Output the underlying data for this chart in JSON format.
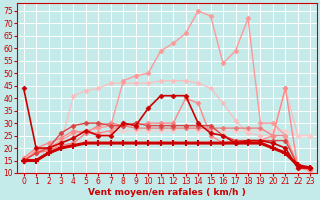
{
  "xlabel": "Vent moyen/en rafales ( km/h )",
  "xlim": [
    -0.5,
    23.5
  ],
  "ylim": [
    10,
    78
  ],
  "yticks": [
    10,
    15,
    20,
    25,
    30,
    35,
    40,
    45,
    50,
    55,
    60,
    65,
    70,
    75
  ],
  "xticks": [
    0,
    1,
    2,
    3,
    4,
    5,
    6,
    7,
    8,
    9,
    10,
    11,
    12,
    13,
    14,
    15,
    16,
    17,
    18,
    19,
    20,
    21,
    22,
    23
  ],
  "bg_color": "#c5eaea",
  "grid_color": "#ffffff",
  "series": [
    {
      "x": [
        0,
        1,
        2,
        3,
        4,
        5,
        6,
        7,
        8,
        9,
        10,
        11,
        12,
        13,
        14,
        15,
        16,
        17,
        18,
        19,
        20,
        21,
        22,
        23
      ],
      "y": [
        15,
        15,
        18,
        20,
        21,
        22,
        22,
        22,
        22,
        22,
        22,
        22,
        22,
        22,
        22,
        22,
        22,
        22,
        22,
        22,
        20,
        18,
        13,
        12
      ],
      "color": "#cc0000",
      "linewidth": 2.2,
      "marker": "+",
      "markersize": 4,
      "markeredgewidth": 1.5,
      "alpha": 1.0,
      "zorder": 5
    },
    {
      "x": [
        0,
        1,
        2,
        3,
        4,
        5,
        6,
        7,
        8,
        9,
        10,
        11,
        12,
        13,
        14,
        15,
        16,
        17,
        18,
        19,
        20,
        21,
        22,
        23
      ],
      "y": [
        44,
        20,
        20,
        22,
        24,
        27,
        25,
        25,
        30,
        29,
        36,
        41,
        41,
        41,
        30,
        26,
        25,
        22,
        23,
        23,
        22,
        20,
        12,
        12
      ],
      "color": "#cc0000",
      "linewidth": 1.2,
      "marker": "D",
      "markersize": 2.5,
      "markeredgewidth": 0.5,
      "alpha": 1.0,
      "zorder": 4
    },
    {
      "x": [
        0,
        1,
        2,
        3,
        4,
        5,
        6,
        7,
        8,
        9,
        10,
        11,
        12,
        13,
        14,
        15,
        16,
        17,
        18,
        19,
        20,
        21,
        22,
        23
      ],
      "y": [
        15,
        19,
        20,
        23,
        26,
        27,
        28,
        29,
        47,
        49,
        50,
        59,
        62,
        66,
        75,
        73,
        54,
        59,
        72,
        30,
        30,
        25,
        13,
        11
      ],
      "color": "#ff9999",
      "linewidth": 1.0,
      "marker": "D",
      "markersize": 2.5,
      "markeredgewidth": 0.5,
      "alpha": 1.0,
      "zorder": 3
    },
    {
      "x": [
        0,
        1,
        2,
        3,
        4,
        5,
        6,
        7,
        8,
        9,
        10,
        11,
        12,
        13,
        14,
        15,
        16,
        17,
        18,
        19,
        20,
        21,
        22,
        23
      ],
      "y": [
        16,
        20,
        22,
        24,
        27,
        26,
        26,
        27,
        30,
        29,
        30,
        30,
        30,
        40,
        38,
        25,
        22,
        23,
        23,
        23,
        25,
        44,
        12,
        11
      ],
      "color": "#ff8888",
      "linewidth": 1.0,
      "marker": "D",
      "markersize": 2.5,
      "markeredgewidth": 0.5,
      "alpha": 1.0,
      "zorder": 3
    },
    {
      "x": [
        0,
        1,
        2,
        3,
        4,
        5,
        6,
        7,
        8,
        9,
        10,
        11,
        12,
        13,
        14,
        15,
        16,
        17,
        18,
        19,
        20,
        21,
        22,
        23
      ],
      "y": [
        15,
        18,
        19,
        22,
        41,
        43,
        44,
        46,
        46,
        46,
        46,
        47,
        47,
        47,
        46,
        44,
        38,
        31,
        26,
        25,
        25,
        44,
        25,
        25
      ],
      "color": "#ffbbbb",
      "linewidth": 1.0,
      "marker": "D",
      "markersize": 2.5,
      "markeredgewidth": 0.5,
      "alpha": 0.85,
      "zorder": 2
    },
    {
      "x": [
        0,
        1,
        2,
        3,
        4,
        5,
        6,
        7,
        8,
        9,
        10,
        11,
        12,
        13,
        14,
        15,
        16,
        17,
        18,
        19,
        20,
        21,
        22,
        23
      ],
      "y": [
        15,
        19,
        20,
        21,
        22,
        23,
        25,
        26,
        27,
        27,
        27,
        27,
        27,
        28,
        27,
        27,
        27,
        27,
        27,
        27,
        27,
        27,
        25,
        25
      ],
      "color": "#ffcccc",
      "linewidth": 1.0,
      "marker": "D",
      "markersize": 2.5,
      "markeredgewidth": 0.5,
      "alpha": 0.8,
      "zorder": 2
    },
    {
      "x": [
        0,
        1,
        2,
        3,
        4,
        5,
        6,
        7,
        8,
        9,
        10,
        11,
        12,
        13,
        14,
        15,
        16,
        17,
        18,
        19,
        20,
        21,
        22,
        23
      ],
      "y": [
        15,
        18,
        20,
        26,
        29,
        30,
        30,
        29,
        29,
        30,
        29,
        29,
        29,
        29,
        29,
        29,
        25,
        23,
        23,
        23,
        23,
        23,
        13,
        12
      ],
      "color": "#dd4444",
      "linewidth": 1.0,
      "marker": "D",
      "markersize": 2.5,
      "markeredgewidth": 0.5,
      "alpha": 1.0,
      "zorder": 3
    },
    {
      "x": [
        0,
        1,
        2,
        3,
        4,
        5,
        6,
        7,
        8,
        9,
        10,
        11,
        12,
        13,
        14,
        15,
        16,
        17,
        18,
        19,
        20,
        21,
        22,
        23
      ],
      "y": [
        15,
        18,
        19,
        21,
        22,
        26,
        29,
        30,
        29,
        28,
        28,
        28,
        28,
        28,
        28,
        28,
        28,
        28,
        28,
        28,
        25,
        25,
        13,
        12
      ],
      "color": "#ee7777",
      "linewidth": 1.0,
      "marker": "D",
      "markersize": 2.5,
      "markeredgewidth": 0.5,
      "alpha": 0.9,
      "zorder": 2
    }
  ]
}
